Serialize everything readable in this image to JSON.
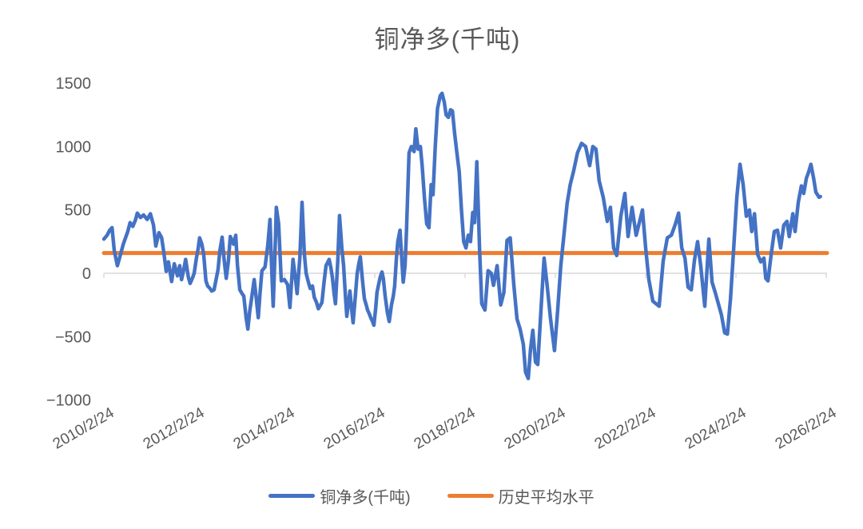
{
  "title": "铜净多(千吨)",
  "colors": {
    "series_blue": "#4472C4",
    "average_orange": "#ED7D31",
    "axis_text": "#595959",
    "title_text": "#595959",
    "axis_line": "#D9D9D9",
    "background": "#FFFFFF"
  },
  "legend": {
    "items": [
      {
        "label": "铜净多(千吨)",
        "color": "#4472C4"
      },
      {
        "label": "历史平均水平",
        "color": "#ED7D31"
      }
    ]
  },
  "y_axis": {
    "tick_labels": [
      "1500",
      "1000",
      "500",
      "0",
      "−500",
      "−1000"
    ],
    "tick_values": [
      1500,
      1000,
      500,
      0,
      -500,
      -1000
    ],
    "min": -1000,
    "max": 1500
  },
  "x_axis": {
    "tick_labels": [
      "2010/2/24",
      "2012/2/24",
      "2014/2/24",
      "2016/2/24",
      "2018/2/24",
      "2020/2/24",
      "2022/2/24",
      "2024/2/24",
      "2026/2/24"
    ],
    "tick_positions_decimal_year": [
      2010.15,
      2012.15,
      2014.15,
      2016.15,
      2018.15,
      2020.15,
      2022.15,
      2024.15,
      2026.15
    ]
  },
  "chart_data": {
    "type": "line",
    "title": "铜净多(千吨)",
    "xlabel": "",
    "ylabel": "",
    "ylim": [
      -1000,
      1500
    ],
    "xlim_decimal_year": [
      2010.15,
      2026.15
    ],
    "grid": "zero-axis-line-only",
    "legend_position": "bottom",
    "x_unit": "decimal_year (ticks shown as YYYY/2/24)",
    "y_unit": "千吨 (thousand tons)",
    "series": [
      {
        "name": "铜净多(千吨)",
        "type": "line",
        "color": "#4472C4",
        "points": [
          [
            2010.15,
            270
          ],
          [
            2010.22,
            300
          ],
          [
            2010.28,
            340
          ],
          [
            2010.33,
            360
          ],
          [
            2010.38,
            180
          ],
          [
            2010.45,
            60
          ],
          [
            2010.52,
            150
          ],
          [
            2010.58,
            230
          ],
          [
            2010.63,
            280
          ],
          [
            2010.68,
            330
          ],
          [
            2010.73,
            400
          ],
          [
            2010.79,
            370
          ],
          [
            2010.85,
            420
          ],
          [
            2010.89,
            475
          ],
          [
            2010.96,
            440
          ],
          [
            2011.03,
            460
          ],
          [
            2011.11,
            425
          ],
          [
            2011.18,
            470
          ],
          [
            2011.25,
            380
          ],
          [
            2011.3,
            215
          ],
          [
            2011.37,
            320
          ],
          [
            2011.43,
            280
          ],
          [
            2011.48,
            160
          ],
          [
            2011.53,
            15
          ],
          [
            2011.58,
            90
          ],
          [
            2011.65,
            -65
          ],
          [
            2011.71,
            75
          ],
          [
            2011.78,
            -20
          ],
          [
            2011.83,
            60
          ],
          [
            2011.87,
            -50
          ],
          [
            2011.92,
            30
          ],
          [
            2011.96,
            110
          ],
          [
            2012.02,
            -30
          ],
          [
            2012.06,
            -80
          ],
          [
            2012.11,
            -40
          ],
          [
            2012.15,
            0
          ],
          [
            2012.2,
            120
          ],
          [
            2012.24,
            200
          ],
          [
            2012.27,
            280
          ],
          [
            2012.32,
            230
          ],
          [
            2012.36,
            150
          ],
          [
            2012.41,
            -60
          ],
          [
            2012.45,
            -100
          ],
          [
            2012.5,
            -120
          ],
          [
            2012.54,
            -140
          ],
          [
            2012.59,
            -130
          ],
          [
            2012.63,
            -60
          ],
          [
            2012.68,
            30
          ],
          [
            2012.72,
            180
          ],
          [
            2012.77,
            285
          ],
          [
            2012.81,
            120
          ],
          [
            2012.86,
            -40
          ],
          [
            2012.91,
            100
          ],
          [
            2012.95,
            290
          ],
          [
            2013.02,
            230
          ],
          [
            2013.07,
            300
          ],
          [
            2013.11,
            60
          ],
          [
            2013.16,
            -130
          ],
          [
            2013.21,
            -160
          ],
          [
            2013.25,
            -180
          ],
          [
            2013.3,
            -350
          ],
          [
            2013.34,
            -440
          ],
          [
            2013.38,
            -300
          ],
          [
            2013.42,
            -200
          ],
          [
            2013.48,
            -50
          ],
          [
            2013.52,
            -180
          ],
          [
            2013.57,
            -350
          ],
          [
            2013.61,
            -150
          ],
          [
            2013.65,
            20
          ],
          [
            2013.72,
            50
          ],
          [
            2013.78,
            220
          ],
          [
            2013.83,
            425
          ],
          [
            2013.86,
            100
          ],
          [
            2013.9,
            -260
          ],
          [
            2013.94,
            150
          ],
          [
            2013.97,
            520
          ],
          [
            2014.02,
            390
          ],
          [
            2014.08,
            -60
          ],
          [
            2014.15,
            -50
          ],
          [
            2014.22,
            -90
          ],
          [
            2014.27,
            -270
          ],
          [
            2014.34,
            110
          ],
          [
            2014.4,
            -60
          ],
          [
            2014.43,
            -160
          ],
          [
            2014.49,
            120
          ],
          [
            2014.54,
            560
          ],
          [
            2014.59,
            150
          ],
          [
            2014.63,
            0
          ],
          [
            2014.68,
            -70
          ],
          [
            2014.72,
            -120
          ],
          [
            2014.77,
            -100
          ],
          [
            2014.81,
            -190
          ],
          [
            2014.86,
            -230
          ],
          [
            2014.9,
            -280
          ],
          [
            2014.95,
            -250
          ],
          [
            2014.98,
            -230
          ],
          [
            2015.03,
            -60
          ],
          [
            2015.07,
            60
          ],
          [
            2015.14,
            110
          ],
          [
            2015.18,
            40
          ],
          [
            2015.21,
            -30
          ],
          [
            2015.25,
            -160
          ],
          [
            2015.28,
            -240
          ],
          [
            2015.33,
            100
          ],
          [
            2015.37,
            455
          ],
          [
            2015.42,
            200
          ],
          [
            2015.46,
            60
          ],
          [
            2015.5,
            -180
          ],
          [
            2015.53,
            -340
          ],
          [
            2015.57,
            -230
          ],
          [
            2015.6,
            -140
          ],
          [
            2015.64,
            -290
          ],
          [
            2015.67,
            -390
          ],
          [
            2015.72,
            -180
          ],
          [
            2015.76,
            0
          ],
          [
            2015.8,
            80
          ],
          [
            2015.83,
            130
          ],
          [
            2015.88,
            -60
          ],
          [
            2015.92,
            -200
          ],
          [
            2015.96,
            -250
          ],
          [
            2015.99,
            -290
          ],
          [
            2016.03,
            -320
          ],
          [
            2016.06,
            -350
          ],
          [
            2016.1,
            -380
          ],
          [
            2016.13,
            -410
          ],
          [
            2016.17,
            -280
          ],
          [
            2016.2,
            -150
          ],
          [
            2016.24,
            -80
          ],
          [
            2016.27,
            -30
          ],
          [
            2016.31,
            10
          ],
          [
            2016.34,
            -40
          ],
          [
            2016.38,
            -180
          ],
          [
            2016.43,
            -310
          ],
          [
            2016.47,
            -380
          ],
          [
            2016.52,
            -250
          ],
          [
            2016.56,
            -180
          ],
          [
            2016.59,
            -100
          ],
          [
            2016.63,
            120
          ],
          [
            2016.66,
            250
          ],
          [
            2016.71,
            340
          ],
          [
            2016.75,
            100
          ],
          [
            2016.78,
            -70
          ],
          [
            2016.82,
            60
          ],
          [
            2016.85,
            300
          ],
          [
            2016.91,
            950
          ],
          [
            2016.96,
            1000
          ],
          [
            2017.02,
            960
          ],
          [
            2017.06,
            1140
          ],
          [
            2017.11,
            980
          ],
          [
            2017.16,
            1000
          ],
          [
            2017.2,
            850
          ],
          [
            2017.25,
            600
          ],
          [
            2017.3,
            390
          ],
          [
            2017.35,
            360
          ],
          [
            2017.4,
            700
          ],
          [
            2017.44,
            620
          ],
          [
            2017.49,
            1000
          ],
          [
            2017.54,
            1300
          ],
          [
            2017.6,
            1400
          ],
          [
            2017.64,
            1420
          ],
          [
            2017.69,
            1350
          ],
          [
            2017.73,
            1250
          ],
          [
            2017.78,
            1230
          ],
          [
            2017.83,
            1290
          ],
          [
            2017.87,
            1280
          ],
          [
            2017.92,
            1100
          ],
          [
            2017.97,
            950
          ],
          [
            2018.02,
            800
          ],
          [
            2018.07,
            500
          ],
          [
            2018.12,
            250
          ],
          [
            2018.17,
            200
          ],
          [
            2018.22,
            300
          ],
          [
            2018.27,
            250
          ],
          [
            2018.32,
            480
          ],
          [
            2018.36,
            400
          ],
          [
            2018.41,
            880
          ],
          [
            2018.47,
            200
          ],
          [
            2018.52,
            -240
          ],
          [
            2018.59,
            -290
          ],
          [
            2018.66,
            20
          ],
          [
            2018.73,
            0
          ],
          [
            2018.78,
            -95
          ],
          [
            2018.86,
            60
          ],
          [
            2018.94,
            -250
          ],
          [
            2019.01,
            -150
          ],
          [
            2019.08,
            260
          ],
          [
            2019.15,
            280
          ],
          [
            2019.23,
            -90
          ],
          [
            2019.3,
            -360
          ],
          [
            2019.37,
            -440
          ],
          [
            2019.44,
            -560
          ],
          [
            2019.49,
            -780
          ],
          [
            2019.55,
            -830
          ],
          [
            2019.6,
            -600
          ],
          [
            2019.65,
            -450
          ],
          [
            2019.71,
            -700
          ],
          [
            2019.76,
            -720
          ],
          [
            2019.83,
            -300
          ],
          [
            2019.9,
            120
          ],
          [
            2019.97,
            -100
          ],
          [
            2020.04,
            -350
          ],
          [
            2020.13,
            -610
          ],
          [
            2020.2,
            -300
          ],
          [
            2020.27,
            60
          ],
          [
            2020.34,
            300
          ],
          [
            2020.41,
            550
          ],
          [
            2020.48,
            700
          ],
          [
            2020.55,
            800
          ],
          [
            2020.64,
            950
          ],
          [
            2020.73,
            1025
          ],
          [
            2020.82,
            1000
          ],
          [
            2020.91,
            850
          ],
          [
            2020.98,
            1000
          ],
          [
            2021.05,
            980
          ],
          [
            2021.12,
            730
          ],
          [
            2021.21,
            600
          ],
          [
            2021.3,
            410
          ],
          [
            2021.37,
            520
          ],
          [
            2021.44,
            200
          ],
          [
            2021.51,
            140
          ],
          [
            2021.6,
            450
          ],
          [
            2021.69,
            630
          ],
          [
            2021.76,
            290
          ],
          [
            2021.85,
            520
          ],
          [
            2021.94,
            300
          ],
          [
            2022.01,
            400
          ],
          [
            2022.08,
            500
          ],
          [
            2022.15,
            200
          ],
          [
            2022.22,
            -50
          ],
          [
            2022.31,
            -220
          ],
          [
            2022.38,
            -240
          ],
          [
            2022.45,
            -260
          ],
          [
            2022.54,
            100
          ],
          [
            2022.63,
            280
          ],
          [
            2022.72,
            300
          ],
          [
            2022.81,
            390
          ],
          [
            2022.88,
            475
          ],
          [
            2022.95,
            200
          ],
          [
            2023.02,
            120
          ],
          [
            2023.09,
            -110
          ],
          [
            2023.16,
            -130
          ],
          [
            2023.23,
            100
          ],
          [
            2023.3,
            250
          ],
          [
            2023.37,
            60
          ],
          [
            2023.46,
            -260
          ],
          [
            2023.55,
            270
          ],
          [
            2023.62,
            -70
          ],
          [
            2023.69,
            -150
          ],
          [
            2023.76,
            -240
          ],
          [
            2023.83,
            -330
          ],
          [
            2023.9,
            -470
          ],
          [
            2023.96,
            -480
          ],
          [
            2024.03,
            -200
          ],
          [
            2024.1,
            200
          ],
          [
            2024.17,
            600
          ],
          [
            2024.24,
            860
          ],
          [
            2024.31,
            700
          ],
          [
            2024.38,
            450
          ],
          [
            2024.45,
            500
          ],
          [
            2024.5,
            330
          ],
          [
            2024.56,
            470
          ],
          [
            2024.63,
            150
          ],
          [
            2024.7,
            90
          ],
          [
            2024.77,
            120
          ],
          [
            2024.81,
            -40
          ],
          [
            2024.86,
            -60
          ],
          [
            2024.93,
            150
          ],
          [
            2025.0,
            330
          ],
          [
            2025.07,
            340
          ],
          [
            2025.14,
            200
          ],
          [
            2025.21,
            380
          ],
          [
            2025.28,
            410
          ],
          [
            2025.33,
            290
          ],
          [
            2025.41,
            470
          ],
          [
            2025.46,
            330
          ],
          [
            2025.53,
            560
          ],
          [
            2025.6,
            690
          ],
          [
            2025.65,
            630
          ],
          [
            2025.71,
            750
          ],
          [
            2025.76,
            800
          ],
          [
            2025.81,
            860
          ],
          [
            2025.87,
            750
          ],
          [
            2025.92,
            640
          ],
          [
            2025.99,
            600
          ],
          [
            2026.02,
            605
          ]
        ]
      },
      {
        "name": "历史平均水平",
        "type": "horizontal-line",
        "color": "#ED7D31",
        "value": 160
      }
    ]
  }
}
